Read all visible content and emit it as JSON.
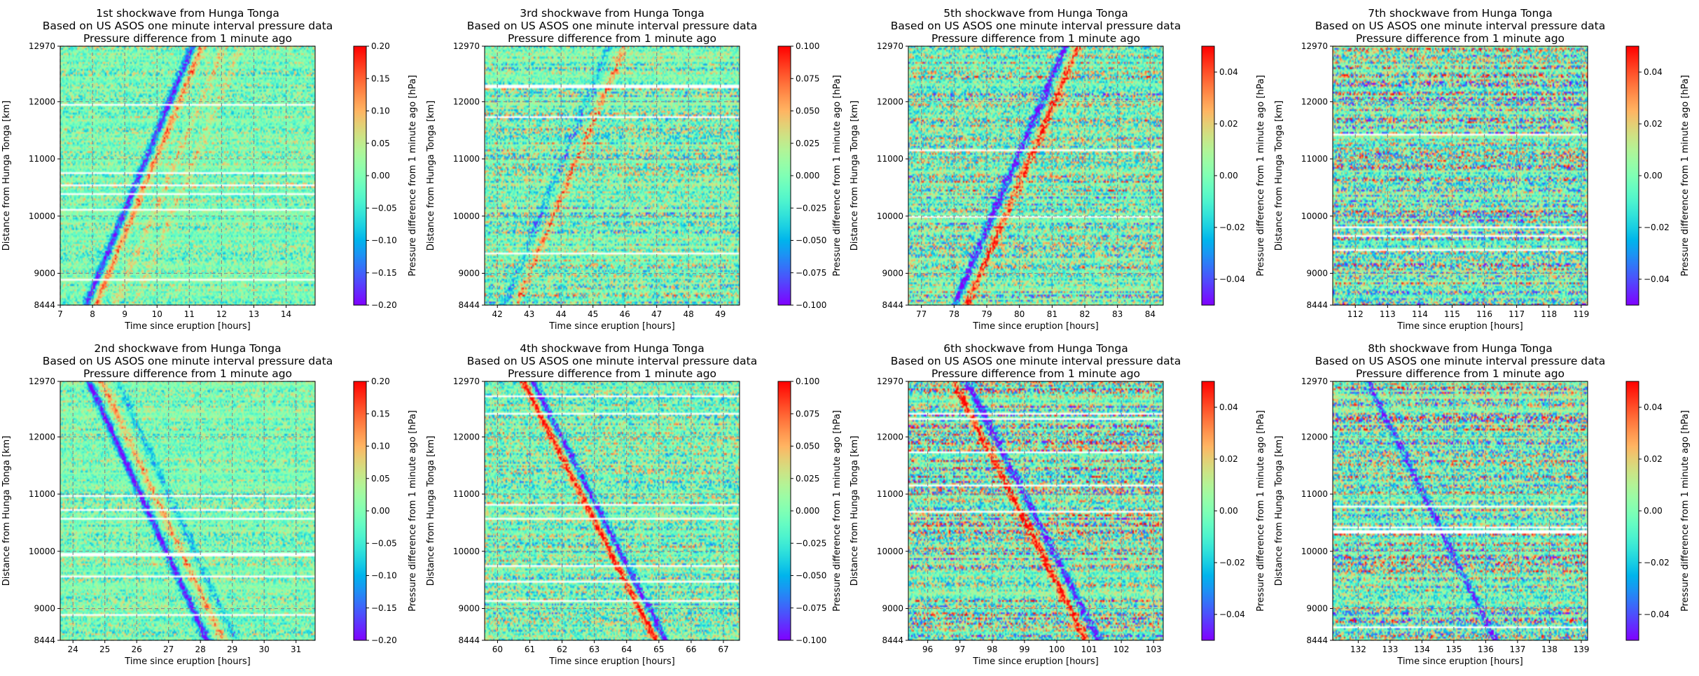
{
  "figure": {
    "colormap": "rainbow",
    "gridline_color": "#8c8c8c",
    "gridline_style": "dashed"
  },
  "chart_data": [
    {
      "type": "heatmap",
      "title_lines": [
        "1st shockwave from Hunga Tonga",
        "Based on US ASOS one minute interval pressure data",
        "Pressure difference from 1 minute ago"
      ],
      "xlabel": "Time since eruption [hours]",
      "ylabel": "Distance from Hunga Tonga [km]",
      "colorbar_label": "Pressure difference from 1 minute ago [hPa]",
      "xlim": [
        7,
        14.9
      ],
      "xticks": [
        7,
        8,
        9,
        10,
        11,
        12,
        13,
        14
      ],
      "ylim": [
        8444,
        12970
      ],
      "yticks": [
        8444,
        9000,
        10000,
        11000,
        12000,
        12970
      ],
      "clim": [
        -0.2,
        0.2
      ],
      "cbar_ticks": [
        -0.2,
        -0.15,
        -0.1,
        -0.05,
        0.0,
        0.05,
        0.1,
        0.15,
        0.2
      ],
      "cbar_tick_labels": [
        "−0.20",
        "−0.15",
        "−0.10",
        "−0.05",
        "0.00",
        "0.05",
        "0.10",
        "0.15",
        "0.20"
      ],
      "noise": 0.07,
      "wavefronts": [
        {
          "t_start": 7.8,
          "d_start": 8444,
          "t_end": 11.1,
          "d_end": 12970,
          "amplitude": -0.18
        },
        {
          "t_start": 8.1,
          "d_start": 8444,
          "t_end": 11.4,
          "d_end": 12970,
          "amplitude": 0.12
        },
        {
          "t_start": 8.7,
          "d_start": 8444,
          "t_end": 12.1,
          "d_end": 12970,
          "amplitude": 0.06
        },
        {
          "t_start": 9.3,
          "d_start": 8444,
          "t_end": 12.6,
          "d_end": 12970,
          "amplitude": 0.05
        }
      ]
    },
    {
      "type": "heatmap",
      "title_lines": [
        "2nd shockwave from Hunga Tonga",
        "Based on US ASOS one minute interval pressure data",
        "Pressure difference from 1 minute ago"
      ],
      "xlabel": "Time since eruption [hours]",
      "ylabel": "Distance from Hunga Tonga [km]",
      "colorbar_label": "Pressure difference from 1 minute ago [hPa]",
      "xlim": [
        23.6,
        31.6
      ],
      "xticks": [
        24,
        25,
        26,
        27,
        28,
        29,
        30,
        31
      ],
      "ylim": [
        8444,
        12970
      ],
      "yticks": [
        8444,
        9000,
        10000,
        11000,
        12000,
        12970
      ],
      "clim": [
        -0.2,
        0.2
      ],
      "cbar_ticks": [
        -0.2,
        -0.15,
        -0.1,
        -0.05,
        0.0,
        0.05,
        0.1,
        0.15,
        0.2
      ],
      "cbar_tick_labels": [
        "−0.20",
        "−0.15",
        "−0.10",
        "−0.05",
        "0.00",
        "0.05",
        "0.10",
        "0.15",
        "0.20"
      ],
      "noise": 0.07,
      "wavefronts": [
        {
          "t_start": 24.5,
          "d_start": 12970,
          "t_end": 28.2,
          "d_end": 8444,
          "amplitude": -0.2
        },
        {
          "t_start": 24.9,
          "d_start": 12970,
          "t_end": 28.7,
          "d_end": 8444,
          "amplitude": 0.1
        },
        {
          "t_start": 25.4,
          "d_start": 12970,
          "t_end": 29.1,
          "d_end": 8444,
          "amplitude": -0.08
        }
      ]
    },
    {
      "type": "heatmap",
      "title_lines": [
        "3rd shockwave from Hunga Tonga",
        "Based on US ASOS one minute interval pressure data",
        "Pressure difference from 1 minute ago"
      ],
      "xlabel": "Time since eruption [hours]",
      "ylabel": "Distance from Hunga Tonga [km]",
      "colorbar_label": "Pressure difference from 1 minute ago [hPa]",
      "xlim": [
        41.6,
        49.6
      ],
      "xticks": [
        42,
        43,
        44,
        45,
        46,
        47,
        48,
        49
      ],
      "ylim": [
        8444,
        12970
      ],
      "yticks": [
        8444,
        9000,
        10000,
        11000,
        12000,
        12970
      ],
      "clim": [
        -0.1,
        0.1
      ],
      "cbar_ticks": [
        -0.1,
        -0.075,
        -0.05,
        -0.025,
        0.0,
        0.025,
        0.05,
        0.075,
        0.1
      ],
      "cbar_tick_labels": [
        "−0.100",
        "−0.075",
        "−0.050",
        "−0.025",
        "0.000",
        "0.025",
        "0.050",
        "0.075",
        "0.100"
      ],
      "noise": 0.05,
      "wavefronts": [
        {
          "t_start": 42.6,
          "d_start": 8444,
          "t_end": 46.0,
          "d_end": 12970,
          "amplitude": 0.05
        },
        {
          "t_start": 42.2,
          "d_start": 8444,
          "t_end": 45.5,
          "d_end": 12970,
          "amplitude": -0.04
        }
      ]
    },
    {
      "type": "heatmap",
      "title_lines": [
        "4th shockwave from Hunga Tonga",
        "Based on US ASOS one minute interval pressure data",
        "Pressure difference from 1 minute ago"
      ],
      "xlabel": "Time since eruption [hours]",
      "ylabel": "Distance from Hunga Tonga [km]",
      "colorbar_label": "Pressure difference from 1 minute ago [hPa]",
      "xlim": [
        59.6,
        67.5
      ],
      "xticks": [
        60,
        61,
        62,
        63,
        64,
        65,
        66,
        67
      ],
      "ylim": [
        8444,
        12970
      ],
      "yticks": [
        8444,
        9000,
        10000,
        11000,
        12000,
        12970
      ],
      "clim": [
        -0.1,
        0.1
      ],
      "cbar_ticks": [
        -0.1,
        -0.075,
        -0.05,
        -0.025,
        0.0,
        0.025,
        0.05,
        0.075,
        0.1
      ],
      "cbar_tick_labels": [
        "−0.100",
        "−0.075",
        "−0.050",
        "−0.025",
        "0.000",
        "0.025",
        "0.050",
        "0.075",
        "0.100"
      ],
      "noise": 0.05,
      "wavefronts": [
        {
          "t_start": 60.8,
          "d_start": 12970,
          "t_end": 64.9,
          "d_end": 8444,
          "amplitude": 0.1
        },
        {
          "t_start": 61.1,
          "d_start": 12970,
          "t_end": 65.2,
          "d_end": 8444,
          "amplitude": -0.09
        }
      ]
    },
    {
      "type": "heatmap",
      "title_lines": [
        "5th shockwave from Hunga Tonga",
        "Based on US ASOS one minute interval pressure data",
        "Pressure difference from 1 minute ago"
      ],
      "xlabel": "Time since eruption [hours]",
      "ylabel": "Distance from Hunga Tonga [km]",
      "colorbar_label": "Pressure difference from 1 minute ago [hPa]",
      "xlim": [
        76.6,
        84.4
      ],
      "xticks": [
        77,
        78,
        79,
        80,
        81,
        82,
        83,
        84
      ],
      "ylim": [
        8444,
        12970
      ],
      "yticks": [
        8444,
        9000,
        10000,
        11000,
        12000,
        12970
      ],
      "clim": [
        -0.05,
        0.05
      ],
      "cbar_ticks": [
        -0.04,
        -0.02,
        0.0,
        0.02,
        0.04
      ],
      "cbar_tick_labels": [
        "−0.04",
        "−0.02",
        "0.00",
        "0.02",
        "0.04"
      ],
      "noise": 0.03,
      "wavefronts": [
        {
          "t_start": 78.0,
          "d_start": 8444,
          "t_end": 81.4,
          "d_end": 12970,
          "amplitude": -0.05
        },
        {
          "t_start": 78.4,
          "d_start": 8444,
          "t_end": 81.8,
          "d_end": 12970,
          "amplitude": 0.04
        }
      ]
    },
    {
      "type": "heatmap",
      "title_lines": [
        "6th shockwave from Hunga Tonga",
        "Based on US ASOS one minute interval pressure data",
        "Pressure difference from 1 minute ago"
      ],
      "xlabel": "Time since eruption [hours]",
      "ylabel": "Distance from Hunga Tonga [km]",
      "colorbar_label": "Pressure difference from 1 minute ago [hPa]",
      "xlim": [
        95.4,
        103.3
      ],
      "xticks": [
        96,
        97,
        98,
        99,
        100,
        101,
        102,
        103
      ],
      "ylim": [
        8444,
        12970
      ],
      "yticks": [
        8444,
        9000,
        10000,
        11000,
        12000,
        12970
      ],
      "clim": [
        -0.05,
        0.05
      ],
      "cbar_ticks": [
        -0.04,
        -0.02,
        0.0,
        0.02,
        0.04
      ],
      "cbar_tick_labels": [
        "−0.04",
        "−0.02",
        "0.00",
        "0.02",
        "0.04"
      ],
      "noise": 0.035,
      "wavefronts": [
        {
          "t_start": 96.8,
          "d_start": 12970,
          "t_end": 100.9,
          "d_end": 8444,
          "amplitude": 0.05
        },
        {
          "t_start": 97.2,
          "d_start": 12970,
          "t_end": 101.3,
          "d_end": 8444,
          "amplitude": -0.05
        }
      ]
    },
    {
      "type": "heatmap",
      "title_lines": [
        "7th shockwave from Hunga Tonga",
        "Based on US ASOS one minute interval pressure data",
        "Pressure difference from 1 minute ago"
      ],
      "xlabel": "Time since eruption [hours]",
      "ylabel": "Distance from Hunga Tonga [km]",
      "colorbar_label": "Pressure difference from 1 minute ago [hPa]",
      "xlim": [
        111.3,
        119.2
      ],
      "xticks": [
        112,
        113,
        114,
        115,
        116,
        117,
        118,
        119
      ],
      "ylim": [
        8444,
        12970
      ],
      "yticks": [
        8444,
        9000,
        10000,
        11000,
        12000,
        12970
      ],
      "clim": [
        -0.05,
        0.05
      ],
      "cbar_ticks": [
        -0.04,
        -0.02,
        0.0,
        0.02,
        0.04
      ],
      "cbar_tick_labels": [
        "−0.04",
        "−0.02",
        "0.00",
        "0.02",
        "0.04"
      ],
      "noise": 0.035,
      "wavefronts": []
    },
    {
      "type": "heatmap",
      "title_lines": [
        "8th shockwave from Hunga Tonga",
        "Based on US ASOS one minute interval pressure data",
        "Pressure difference from 1 minute ago"
      ],
      "xlabel": "Time since eruption [hours]",
      "ylabel": "Distance from Hunga Tonga [km]",
      "colorbar_label": "Pressure difference from 1 minute ago [hPa]",
      "xlim": [
        131.2,
        139.2
      ],
      "xticks": [
        132,
        133,
        134,
        135,
        136,
        137,
        138,
        139
      ],
      "ylim": [
        8444,
        12970
      ],
      "yticks": [
        8444,
        9000,
        10000,
        11000,
        12000,
        12970
      ],
      "clim": [
        -0.05,
        0.05
      ],
      "cbar_ticks": [
        -0.04,
        -0.02,
        0.0,
        0.02,
        0.04
      ],
      "cbar_tick_labels": [
        "−0.04",
        "−0.02",
        "0.00",
        "0.02",
        "0.04"
      ],
      "noise": 0.035,
      "wavefronts": [
        {
          "t_start": 132.3,
          "d_start": 12970,
          "t_end": 136.3,
          "d_end": 8444,
          "amplitude": -0.04
        }
      ]
    }
  ]
}
